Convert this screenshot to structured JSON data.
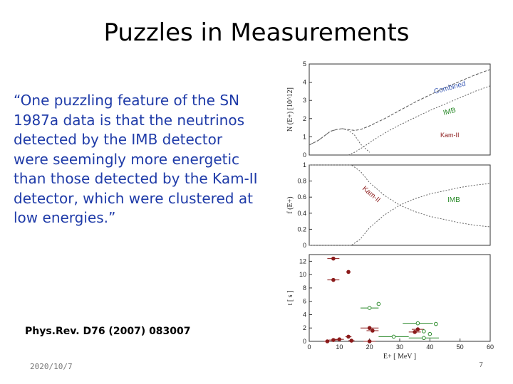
{
  "slide": {
    "title": "Puzzles in Measurements",
    "quote": "“One puzzling feature of the SN 1987a data is that the neutrinos detected by the IMB detector were seemingly more energetic than those detected by the Kam-II detector, which were clustered at low energies.”",
    "reference": "Phys.Rev. D76 (2007) 083007",
    "date": "2020/10/7",
    "page_number": "7"
  },
  "colors": {
    "quote_text": "#1f3ba8",
    "imb": "#2a8a2a",
    "kam": "#8b1a1a",
    "combined": "#3b5bb5"
  },
  "chart_data": [
    {
      "type": "line",
      "panel": "top",
      "ylabel": "N (E+) [10^12]",
      "ylim": [
        0,
        5
      ],
      "yticks": [
        0,
        1,
        2,
        3,
        4,
        5
      ],
      "xlim": [
        0,
        60
      ],
      "curve_labels": [
        "Combined",
        "IMB",
        "Kam-II"
      ],
      "series": [
        {
          "name": "Combined",
          "x": [
            0,
            3,
            5,
            7,
            9,
            11,
            13,
            15,
            17,
            20,
            25,
            30,
            35,
            40,
            45,
            50,
            55,
            60
          ],
          "y": [
            0.55,
            0.8,
            1.05,
            1.3,
            1.4,
            1.45,
            1.4,
            1.35,
            1.4,
            1.6,
            2.0,
            2.45,
            2.9,
            3.3,
            3.7,
            4.05,
            4.4,
            4.7
          ]
        },
        {
          "name": "IMB",
          "x": [
            13,
            15,
            18,
            22,
            26,
            30,
            35,
            40,
            45,
            50,
            55,
            60
          ],
          "y": [
            0,
            0.15,
            0.45,
            0.9,
            1.3,
            1.65,
            2.05,
            2.45,
            2.8,
            3.15,
            3.5,
            3.8
          ]
        },
        {
          "name": "Kam-II",
          "x": [
            0,
            3,
            5,
            7,
            9,
            11,
            13,
            15,
            17,
            20
          ],
          "y": [
            0.55,
            0.8,
            1.05,
            1.3,
            1.4,
            1.45,
            1.35,
            1.1,
            0.6,
            0.15
          ]
        }
      ]
    },
    {
      "type": "line",
      "panel": "middle",
      "ylabel": "f (E+)",
      "ylim": [
        0,
        1
      ],
      "yticks": [
        0,
        0.2,
        0.4,
        0.6,
        0.8,
        1
      ],
      "xlim": [
        0,
        60
      ],
      "curve_labels": [
        "Kam-II",
        "IMB"
      ],
      "series": [
        {
          "name": "Kam-II",
          "x": [
            0,
            14,
            17,
            20,
            25,
            30,
            35,
            40,
            45,
            50,
            55,
            60
          ],
          "y": [
            1,
            1,
            0.92,
            0.78,
            0.62,
            0.5,
            0.42,
            0.36,
            0.32,
            0.28,
            0.25,
            0.23
          ]
        },
        {
          "name": "IMB",
          "x": [
            0,
            14,
            17,
            20,
            25,
            30,
            35,
            40,
            45,
            50,
            55,
            60
          ],
          "y": [
            0,
            0,
            0.08,
            0.22,
            0.38,
            0.5,
            0.58,
            0.64,
            0.68,
            0.72,
            0.75,
            0.77
          ]
        }
      ]
    },
    {
      "type": "scatter",
      "panel": "bottom",
      "ylabel": "t [ s ]",
      "xlabel": "E+ [ MeV ]",
      "ylim": [
        0,
        13
      ],
      "yticks": [
        0,
        2,
        4,
        6,
        8,
        10,
        12
      ],
      "xlim": [
        0,
        60
      ],
      "xticks": [
        0,
        10,
        20,
        30,
        40,
        50,
        60
      ],
      "series": [
        {
          "name": "Kam-II",
          "points": [
            {
              "x": 8,
              "y": 12.4,
              "xerr": 2
            },
            {
              "x": 8,
              "y": 9.2,
              "xerr": 2
            },
            {
              "x": 13,
              "y": 10.4,
              "xerr": 0
            },
            {
              "x": 20,
              "y": 2.0,
              "xerr": 3
            },
            {
              "x": 21,
              "y": 1.6,
              "xerr": 2
            },
            {
              "x": 36,
              "y": 1.8,
              "xerr": 2
            },
            {
              "x": 35,
              "y": 1.4,
              "xerr": 2
            },
            {
              "x": 13,
              "y": 0.7,
              "xerr": 1
            },
            {
              "x": 8,
              "y": 0.2,
              "xerr": 1.5
            },
            {
              "x": 10,
              "y": 0.3,
              "xerr": 1.5
            },
            {
              "x": 14,
              "y": 0.1,
              "xerr": 1
            },
            {
              "x": 20,
              "y": 0.0,
              "xerr": 2
            },
            {
              "x": 6,
              "y": 0.0,
              "xerr": 1
            }
          ]
        },
        {
          "name": "IMB",
          "points": [
            {
              "x": 20,
              "y": 5.0,
              "xerr": 3
            },
            {
              "x": 23,
              "y": 5.6,
              "xerr": 0
            },
            {
              "x": 36,
              "y": 2.7,
              "xerr": 5
            },
            {
              "x": 42,
              "y": 2.6,
              "xerr": 0
            },
            {
              "x": 38,
              "y": 1.5,
              "xerr": 0
            },
            {
              "x": 28,
              "y": 0.7,
              "xerr": 5
            },
            {
              "x": 38,
              "y": 0.5,
              "xerr": 5
            },
            {
              "x": 40,
              "y": 1.1,
              "xerr": 0
            }
          ]
        }
      ]
    }
  ]
}
